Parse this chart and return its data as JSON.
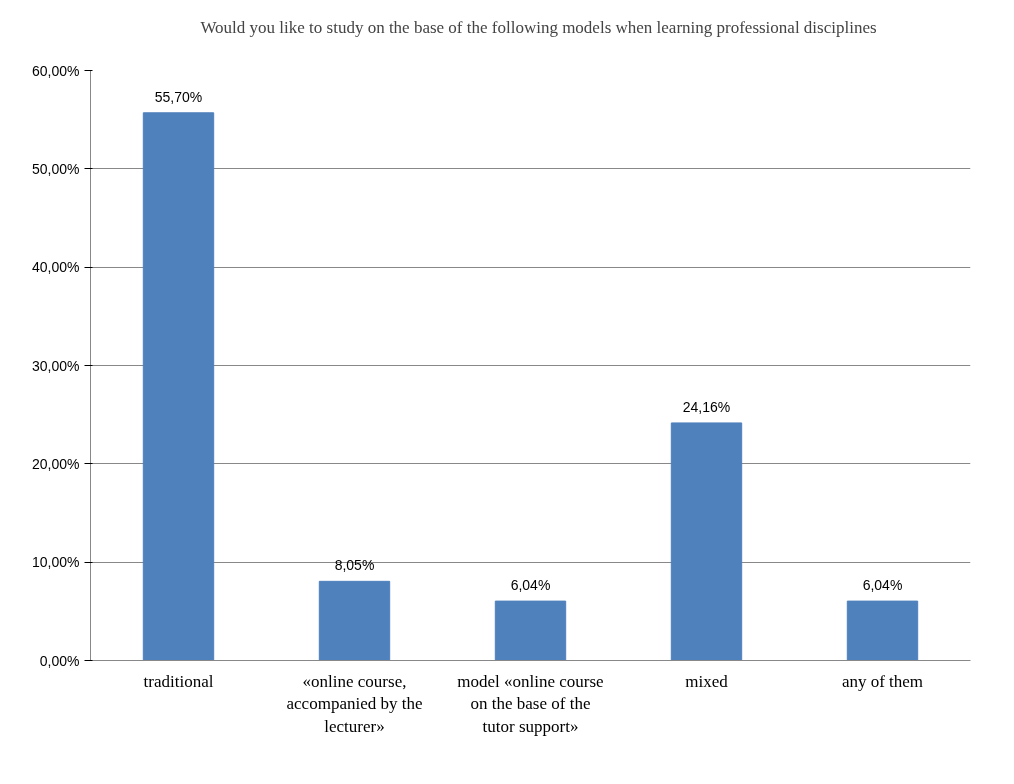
{
  "chart_data": {
    "type": "bar",
    "categories": [
      "traditional",
      "«online course, accompanied by the lecturer»",
      "model «online course on the base of the tutor support»",
      "mixed",
      "any of them"
    ],
    "series": [
      {
        "name": "Would you like to study on the base of the following models when learning professional disciplines",
        "color": "#4f81bd",
        "values": [
          55.7,
          8.05,
          6.04,
          24.16,
          6.04
        ],
        "value_labels": [
          "55,70%",
          "8,05%",
          "6,04%",
          "24,16%",
          "6,04%"
        ]
      }
    ],
    "ylim": [
      0,
      60
    ],
    "yticks": [
      {
        "value": 0,
        "label": "0,00%"
      },
      {
        "value": 10,
        "label": "10,00%"
      },
      {
        "value": 20,
        "label": "20,00%"
      },
      {
        "value": 30,
        "label": "30,00%"
      },
      {
        "value": 40,
        "label": "40,00%"
      },
      {
        "value": 50,
        "label": "50,00%"
      },
      {
        "value": 60,
        "label": "60,00%"
      }
    ],
    "grid": "y",
    "legend": "top"
  }
}
